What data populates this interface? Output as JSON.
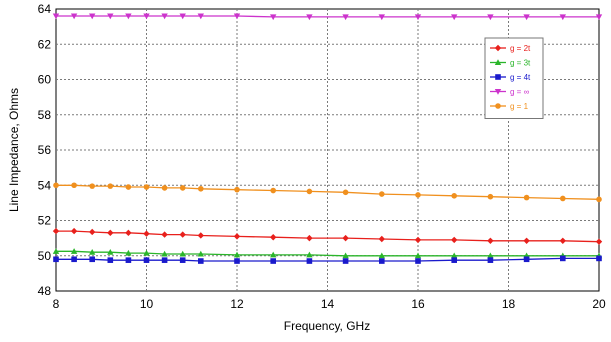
{
  "chart_data": {
    "type": "line",
    "title": "",
    "xlabel": "Frequency, GHz",
    "ylabel": "Line Impedance, Ohms",
    "xlim": [
      8,
      20
    ],
    "ylim": [
      48,
      64
    ],
    "x_ticks": [
      "8",
      "10",
      "12",
      "14",
      "16",
      "18",
      "20"
    ],
    "y_ticks": [
      "48",
      "50",
      "52",
      "54",
      "56",
      "58",
      "60",
      "62",
      "64"
    ],
    "grid": true,
    "legend_position": "top-right",
    "series": [
      {
        "name": "g = 2t",
        "color": "#e8201c",
        "marker": "diamond",
        "x": [
          8,
          8.4,
          8.8,
          9.2,
          9.6,
          10,
          10.4,
          10.8,
          11.2,
          12,
          12.8,
          13.6,
          14.4,
          15.2,
          16,
          16.8,
          17.6,
          18.4,
          19.2,
          20
        ],
        "y": [
          51.4,
          51.4,
          51.35,
          51.3,
          51.3,
          51.25,
          51.2,
          51.2,
          51.15,
          51.1,
          51.05,
          51.0,
          51.0,
          50.95,
          50.9,
          50.9,
          50.85,
          50.85,
          50.85,
          50.8
        ]
      },
      {
        "name": "g = 3t",
        "color": "#2ab52a",
        "marker": "triangle",
        "x": [
          8,
          8.4,
          8.8,
          9.2,
          9.6,
          10,
          10.4,
          10.8,
          11.2,
          12,
          12.8,
          13.6,
          14.4,
          15.2,
          16,
          16.8,
          17.6,
          18.4,
          19.2,
          20
        ],
        "y": [
          50.25,
          50.25,
          50.2,
          50.2,
          50.15,
          50.15,
          50.1,
          50.1,
          50.1,
          50.05,
          50.05,
          50.05,
          50.0,
          50.0,
          50.0,
          50.0,
          50.0,
          50.0,
          50.0,
          50.0
        ]
      },
      {
        "name": "g = 4t",
        "color": "#1a1acc",
        "marker": "square",
        "x": [
          8,
          8.4,
          8.8,
          9.2,
          9.6,
          10,
          10.4,
          10.8,
          11.2,
          12,
          12.8,
          13.6,
          14.4,
          15.2,
          16,
          16.8,
          17.6,
          18.4,
          19.2,
          20
        ],
        "y": [
          49.8,
          49.8,
          49.8,
          49.75,
          49.75,
          49.75,
          49.75,
          49.75,
          49.7,
          49.7,
          49.7,
          49.7,
          49.7,
          49.7,
          49.7,
          49.75,
          49.75,
          49.8,
          49.85,
          49.85
        ]
      },
      {
        "name": "g = ∞",
        "color": "#cc33cc",
        "marker": "triangle-down",
        "x": [
          8,
          8.4,
          8.8,
          9.2,
          9.6,
          10,
          10.4,
          10.8,
          11.2,
          12,
          12.8,
          13.6,
          14.4,
          15.2,
          16,
          16.8,
          17.6,
          18.4,
          19.2,
          20
        ],
        "y": [
          63.6,
          63.6,
          63.6,
          63.6,
          63.6,
          63.6,
          63.6,
          63.6,
          63.6,
          63.6,
          63.55,
          63.55,
          63.55,
          63.55,
          63.55,
          63.55,
          63.55,
          63.55,
          63.55,
          63.55
        ]
      },
      {
        "name": "g = 1",
        "color": "#f0901e",
        "marker": "star",
        "x": [
          8,
          8.4,
          8.8,
          9.2,
          9.6,
          10,
          10.4,
          10.8,
          11.2,
          12,
          12.8,
          13.6,
          14.4,
          15.2,
          16,
          16.8,
          17.6,
          18.4,
          19.2,
          20
        ],
        "y": [
          54.0,
          54.0,
          53.95,
          53.95,
          53.9,
          53.9,
          53.85,
          53.85,
          53.8,
          53.75,
          53.7,
          53.65,
          53.6,
          53.5,
          53.45,
          53.4,
          53.35,
          53.3,
          53.25,
          53.2
        ]
      }
    ]
  }
}
